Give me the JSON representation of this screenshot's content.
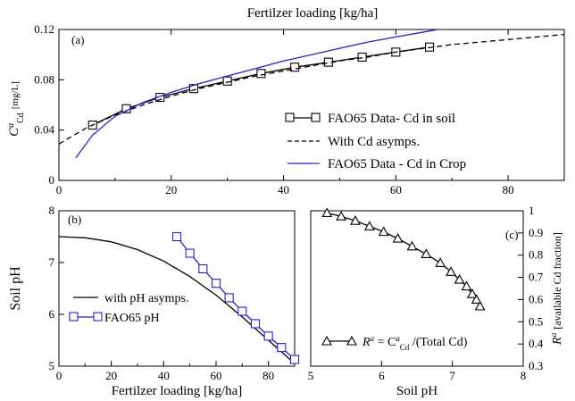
{
  "chart_data": [
    {
      "id": "a",
      "type": "line",
      "panel_label": "(a)",
      "title": "Fertilzer loading [kg/ha]",
      "ylabel": {
        "main": "C",
        "sup": "a",
        "sub": "Cd",
        "unit": "[mg/L]"
      },
      "xlim": [
        0,
        90
      ],
      "ylim": [
        0,
        0.12
      ],
      "xticks": [
        0,
        20,
        40,
        60,
        80
      ],
      "xtick_labels": [
        "0",
        "20",
        "40",
        "60",
        "80"
      ],
      "yticks": [
        0,
        0.04,
        0.08,
        0.12
      ],
      "ytick_labels": [
        "0",
        "0.04",
        "0.08",
        "0.12"
      ],
      "legend_position": "right",
      "series": [
        {
          "name": "FAO65 Data- Cd in soil",
          "style": "solid",
          "color": "#000000",
          "marker": "square",
          "x": [
            6,
            12,
            18,
            24,
            30,
            36,
            42,
            48,
            54,
            60,
            66
          ],
          "y": [
            0.044,
            0.057,
            0.066,
            0.073,
            0.079,
            0.085,
            0.09,
            0.094,
            0.098,
            0.102,
            0.106
          ]
        },
        {
          "name": "With Cd asymps.",
          "style": "dashed",
          "color": "#000000",
          "marker": "none",
          "x": [
            0,
            5,
            10,
            15,
            20,
            25,
            30,
            35,
            40,
            45,
            50,
            55,
            60,
            65,
            70,
            75,
            80,
            85,
            90
          ],
          "y": [
            0.029,
            0.042,
            0.052,
            0.06,
            0.067,
            0.073,
            0.078,
            0.083,
            0.087,
            0.091,
            0.095,
            0.098,
            0.102,
            0.105,
            0.108,
            0.11,
            0.112,
            0.114,
            0.116
          ]
        },
        {
          "name": "FAO65 Data - Cd in Crop",
          "style": "solid",
          "color": "#2222cc",
          "marker": "none",
          "x": [
            3,
            6,
            10,
            15,
            20,
            25,
            30,
            35,
            40,
            45,
            50,
            55,
            60,
            65,
            70
          ],
          "y": [
            0.018,
            0.036,
            0.051,
            0.062,
            0.07,
            0.077,
            0.083,
            0.089,
            0.095,
            0.1,
            0.105,
            0.11,
            0.114,
            0.118,
            0.122
          ]
        }
      ]
    },
    {
      "id": "b",
      "type": "line",
      "panel_label": "(b)",
      "xlabel": "Fertilzer loading [kg/ha]",
      "ylabel": "Soil pH",
      "xlim": [
        0,
        90
      ],
      "ylim": [
        5,
        8
      ],
      "xticks": [
        0,
        20,
        40,
        60,
        80
      ],
      "xtick_labels": [
        "0",
        "20",
        "40",
        "60",
        "80"
      ],
      "yticks": [
        5,
        6,
        7,
        8
      ],
      "ytick_labels": [
        "5",
        "6",
        "7",
        "8"
      ],
      "legend_position": "bottom-left",
      "series": [
        {
          "name": "with pH asymps.",
          "style": "solid",
          "color": "#000000",
          "marker": "none",
          "x": [
            0,
            10,
            20,
            30,
            40,
            50,
            60,
            70,
            80,
            90
          ],
          "y": [
            7.5,
            7.48,
            7.4,
            7.25,
            7.03,
            6.73,
            6.37,
            5.95,
            5.5,
            5.05
          ]
        },
        {
          "name": "FAO65 pH",
          "style": "solid",
          "color": "#2222cc",
          "marker": "square",
          "x": [
            45,
            50,
            55,
            60,
            65,
            70,
            75,
            80,
            85,
            90
          ],
          "y": [
            7.5,
            7.18,
            6.88,
            6.6,
            6.32,
            6.06,
            5.82,
            5.58,
            5.36,
            5.13
          ]
        }
      ]
    },
    {
      "id": "c",
      "type": "line",
      "panel_label": "(c)",
      "xlabel": "Soil pH",
      "ylabel": {
        "main": "R",
        "sup": "a",
        "unit": "[available Cd fraction]"
      },
      "xlim": [
        5,
        8
      ],
      "ylim": [
        0.3,
        1.0
      ],
      "xticks": [
        5,
        6,
        7,
        8
      ],
      "xtick_labels": [
        "5",
        "6",
        "7",
        "8"
      ],
      "yticks": [
        0.3,
        0.4,
        0.5,
        0.6,
        0.7,
        0.8,
        0.9,
        1.0
      ],
      "ytick_labels": [
        "0.3",
        "0.4",
        "0.5",
        "0.6",
        "0.7",
        "0.8",
        "0.9",
        "1"
      ],
      "legend_position": "bottom",
      "series": [
        {
          "name": "R^a = C^a_Cd /(Total Cd)",
          "legend_parts": {
            "R": "R",
            "a": "a",
            "eq": " = C",
            "sub": "Cd",
            "tail": " /(Total Cd)"
          },
          "style": "solid",
          "color": "#000000",
          "marker": "triangle",
          "x": [
            5.23,
            5.43,
            5.63,
            5.83,
            6.03,
            6.23,
            6.43,
            6.63,
            6.83,
            6.98,
            7.1,
            7.2,
            7.28,
            7.34,
            7.39
          ],
          "y": [
            0.99,
            0.975,
            0.955,
            0.93,
            0.905,
            0.875,
            0.84,
            0.805,
            0.765,
            0.725,
            0.69,
            0.66,
            0.625,
            0.6,
            0.57
          ]
        }
      ]
    }
  ]
}
